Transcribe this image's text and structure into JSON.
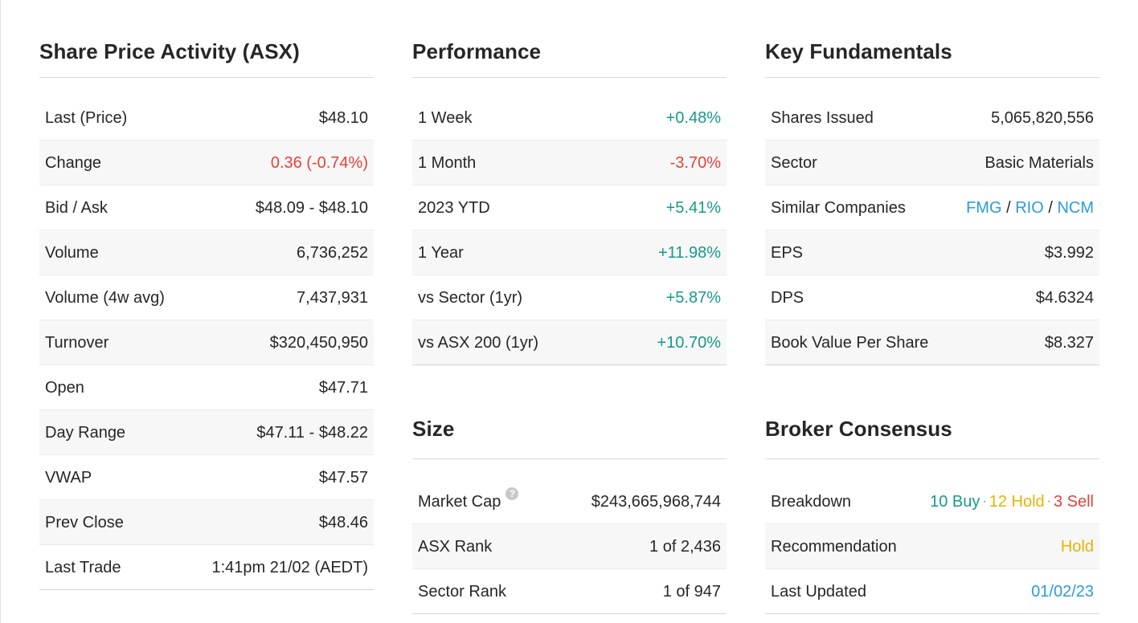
{
  "share_price": {
    "title": "Share Price Activity (ASX)",
    "rows": [
      {
        "label": "Last (Price)",
        "value": "$48.10"
      },
      {
        "label": "Change",
        "value": "0.36 (-0.74%)"
      },
      {
        "label": "Bid / Ask",
        "value": "$48.09 - $48.10"
      },
      {
        "label": "Volume",
        "value": "6,736,252"
      },
      {
        "label": "Volume (4w avg)",
        "value": "7,437,931"
      },
      {
        "label": "Turnover",
        "value": "$320,450,950"
      },
      {
        "label": "Open",
        "value": "$47.71"
      },
      {
        "label": "Day Range",
        "value": "$47.11 - $48.22"
      },
      {
        "label": "VWAP",
        "value": "$47.57"
      },
      {
        "label": "Prev Close",
        "value": "$48.46"
      },
      {
        "label": "Last Trade",
        "value": "1:41pm 21/02 (AEDT)"
      }
    ]
  },
  "performance": {
    "title": "Performance",
    "rows": [
      {
        "label": "1 Week",
        "value": "+0.48%"
      },
      {
        "label": "1 Month",
        "value": "-3.70%"
      },
      {
        "label": "2023 YTD",
        "value": "+5.41%"
      },
      {
        "label": "1 Year",
        "value": "+11.98%"
      },
      {
        "label": "vs Sector (1yr)",
        "value": "+5.87%"
      },
      {
        "label": "vs ASX 200 (1yr)",
        "value": "+10.70%"
      }
    ]
  },
  "size": {
    "title": "Size",
    "help_icon": "?",
    "rows": [
      {
        "label": "Market Cap",
        "value": "$243,665,968,744"
      },
      {
        "label": "ASX Rank",
        "value": "1 of 2,436"
      },
      {
        "label": "Sector Rank",
        "value": "1 of 947"
      }
    ]
  },
  "fundamentals": {
    "title": "Key Fundamentals",
    "rows": [
      {
        "label": "Shares Issued",
        "value": "5,065,820,556"
      },
      {
        "label": "Sector",
        "value": "Basic Materials"
      },
      {
        "label": "Similar Companies",
        "links": [
          "FMG",
          "RIO",
          "NCM"
        ],
        "separator": "/"
      },
      {
        "label": "EPS",
        "value": "$3.992"
      },
      {
        "label": "DPS",
        "value": "$4.6324"
      },
      {
        "label": "Book Value Per Share",
        "value": "$8.327"
      }
    ]
  },
  "broker": {
    "title": "Broker Consensus",
    "rows": [
      {
        "label": "Breakdown",
        "buy": "10 Buy",
        "hold": "12 Hold",
        "sell": "3 Sell",
        "dot": "·"
      },
      {
        "label": "Recommendation",
        "value": "Hold"
      },
      {
        "label": "Last Updated",
        "value": "01/02/23"
      }
    ]
  },
  "colors": {
    "positive": "#17998b",
    "negative": "#e8413a",
    "link": "#2b9bdb",
    "hold": "#e6b400"
  }
}
